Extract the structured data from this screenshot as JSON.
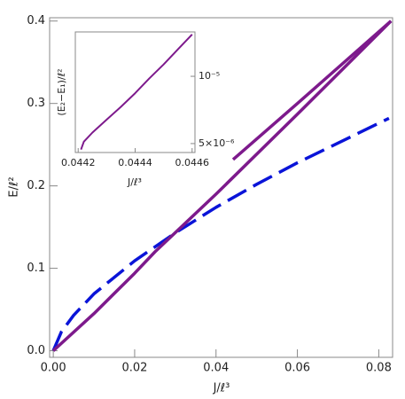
{
  "chart_data": [
    {
      "type": "line",
      "xlabel": "J/ℓ³",
      "ylabel": "E/ℓ²",
      "xlim": [
        -0.0009,
        0.0834
      ],
      "ylim": [
        -0.008,
        0.404
      ],
      "xticks": [
        {
          "value": 0,
          "label": "0.00"
        },
        {
          "value": 0.02,
          "label": "0.02"
        },
        {
          "value": 0.04,
          "label": "0.04"
        },
        {
          "value": 0.06,
          "label": "0.06"
        },
        {
          "value": 0.08,
          "label": "0.08"
        }
      ],
      "yticks": [
        {
          "value": 0,
          "label": "0.0"
        },
        0.1,
        0.2,
        0.3,
        0.4
      ],
      "series": [
        {
          "color": "#0a14d8",
          "style": "dashed",
          "x": [
            0,
            0.002,
            0.005,
            0.01,
            0.02,
            0.03,
            0.04,
            0.05,
            0.06,
            0.07,
            0.0825
          ],
          "values": [
            0,
            0.023,
            0.043,
            0.069,
            0.109,
            0.143,
            0.174,
            0.202,
            0.228,
            0.252,
            0.282
          ]
        },
        {
          "color": "#7d1a8c",
          "style": "solid",
          "x": [
            0,
            0.01,
            0.02,
            0.025,
            0.04,
            0.06,
            0.083
          ],
          "values": [
            0,
            0.045,
            0.094,
            0.12,
            0.19,
            0.287,
            0.4
          ]
        },
        {
          "color": "#7d1a8c",
          "style": "solid",
          "x": [
            0.0442,
            0.06,
            0.083
          ],
          "values": [
            0.232,
            0.3,
            0.4
          ]
        }
      ]
    },
    {
      "type": "line",
      "xlabel": "J/ℓ³",
      "ylabel": "(E₂−E₁)/ℓ²",
      "xlim": [
        0.04419,
        0.04461
      ],
      "ylim": [
        4.56e-06,
        1.58e-05
      ],
      "ylog": true,
      "yaxis_side": "right",
      "xticks": [
        0.0442,
        0.0444,
        0.0446
      ],
      "yticks": [
        {
          "value": 5e-06,
          "label": "5×10⁻⁶"
        },
        {
          "value": 1e-05,
          "label": "10⁻⁵"
        }
      ],
      "series": [
        {
          "color": "#7d1a8c",
          "style": "solid",
          "x": [
            0.04421,
            0.04422,
            0.04425,
            0.0443,
            0.04435,
            0.0444,
            0.04445,
            0.0445,
            0.04455,
            0.0446
          ],
          "values": [
            4.7e-06,
            5.1e-06,
            5.6e-06,
            6.4e-06,
            7.3e-06,
            8.4e-06,
            9.8e-06,
            1.13e-05,
            1.32e-05,
            1.54e-05
          ]
        }
      ]
    }
  ]
}
